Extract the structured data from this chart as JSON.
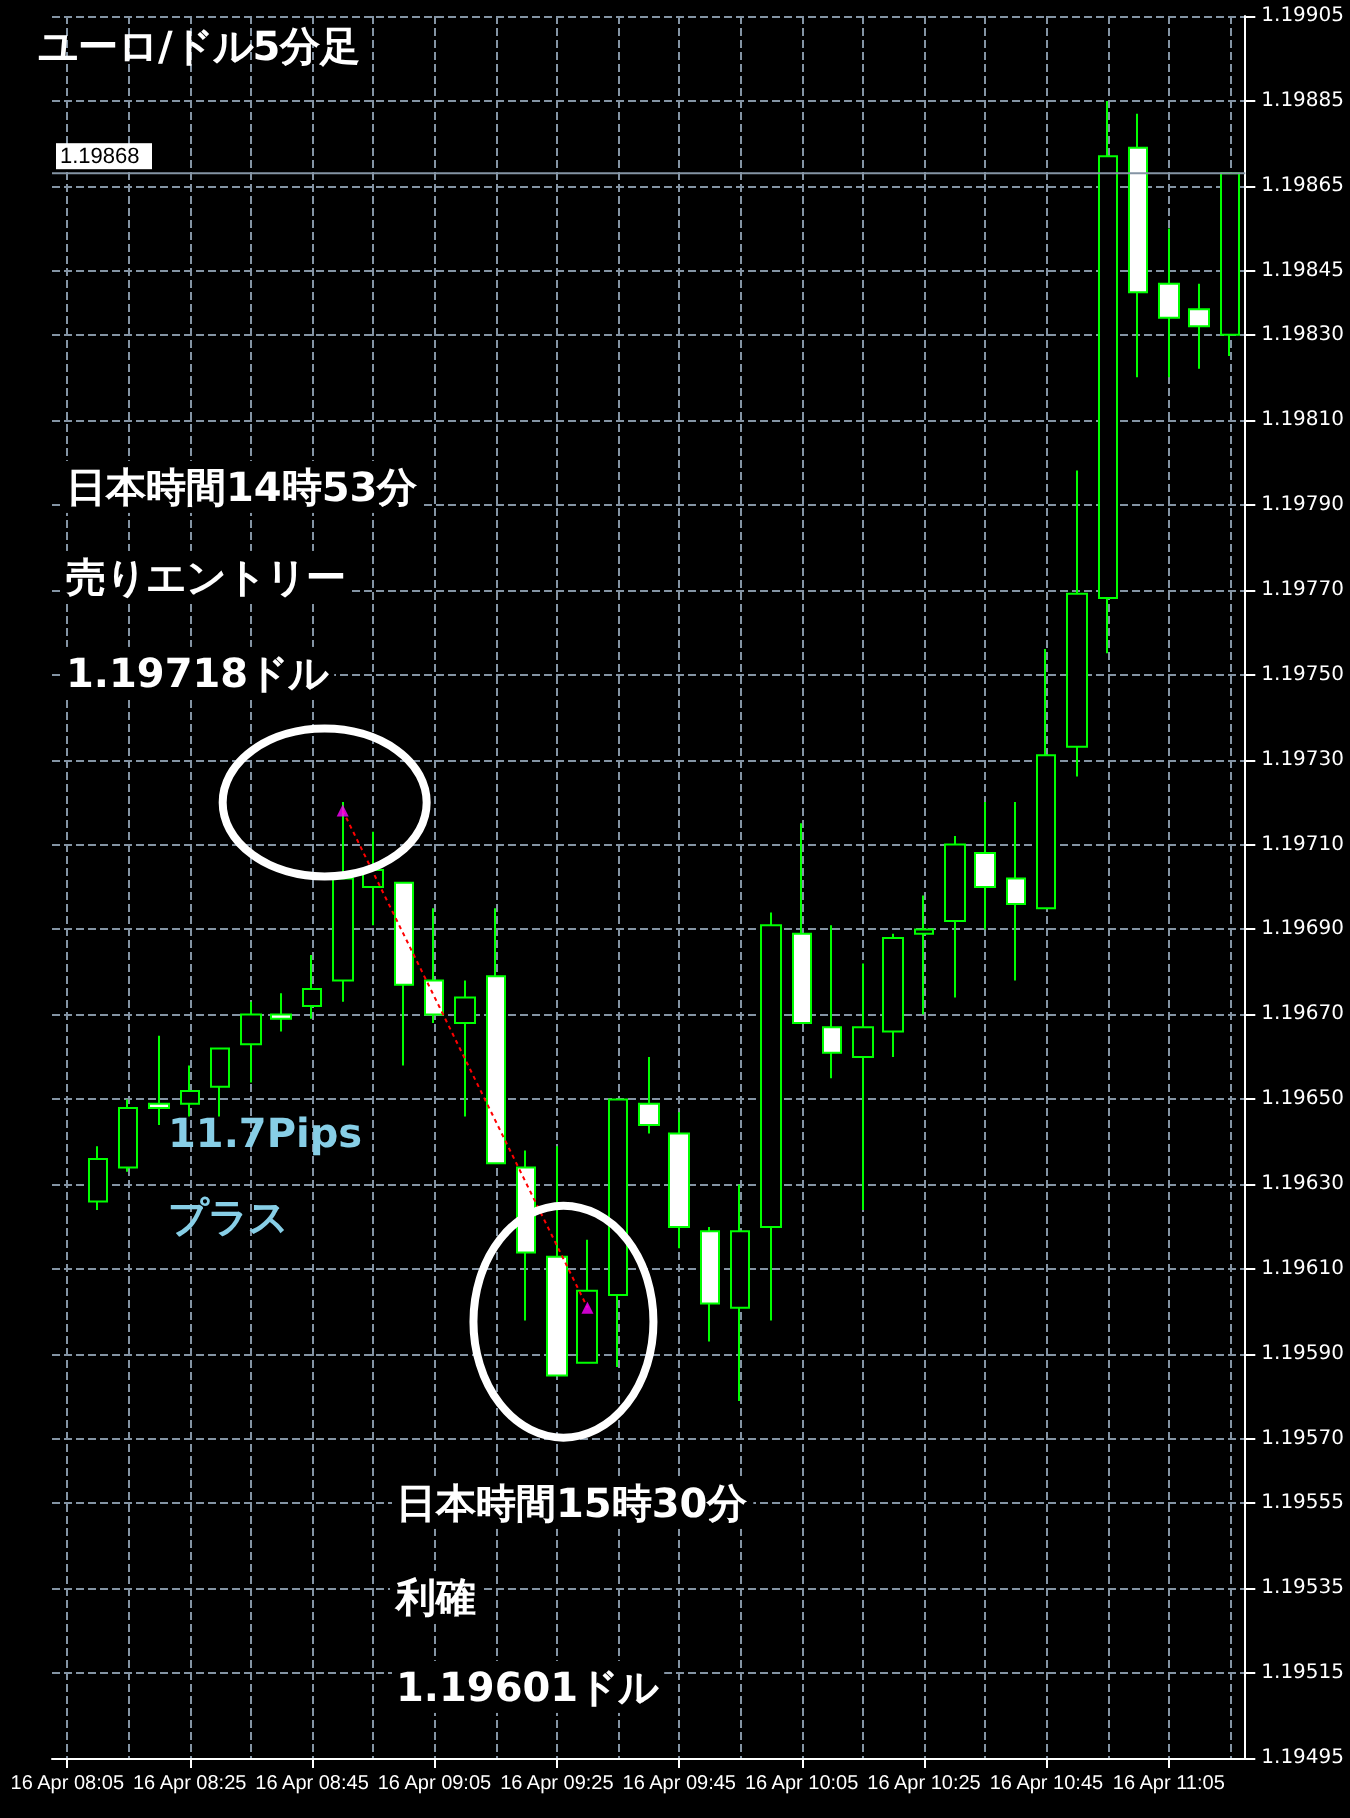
{
  "chart_data": {
    "type": "candlestick",
    "title": "ユーロ/ドル5分足",
    "categories": [
      "16 Apr 08:05",
      null,
      null,
      null,
      "16 Apr 08:25",
      null,
      null,
      null,
      "16 Apr 08:45",
      null,
      null,
      null,
      "16 Apr 09:05",
      null,
      null,
      null,
      "16 Apr 09:25",
      null,
      null,
      null,
      "16 Apr 09:45",
      null,
      null,
      null,
      "16 Apr 10:05",
      null,
      null,
      null,
      "16 Apr 10:25",
      null,
      null,
      null,
      "16 Apr 10:45",
      null,
      null,
      null,
      "16 Apr 11:05",
      null,
      null
    ],
    "ohlc": [
      null,
      [
        1.19626,
        1.19639,
        1.19624,
        1.19636
      ],
      [
        1.19634,
        1.1965,
        1.19633,
        1.19648
      ],
      [
        1.19649,
        1.19665,
        1.19644,
        1.19648
      ],
      [
        1.19649,
        1.19658,
        1.19646,
        1.19652
      ],
      [
        1.19653,
        1.19662,
        1.19646,
        1.19662
      ],
      [
        1.19663,
        1.19673,
        1.19654,
        1.1967
      ],
      [
        1.1967,
        1.19675,
        1.19666,
        1.19669
      ],
      [
        1.19672,
        1.19684,
        1.19669,
        1.19676
      ],
      [
        1.19678,
        1.1972,
        1.19673,
        1.19702
      ],
      [
        1.197,
        1.19713,
        1.19691,
        1.19704
      ],
      [
        1.19701,
        1.19701,
        1.19658,
        1.19677
      ],
      [
        1.19678,
        1.19695,
        1.19668,
        1.1967
      ],
      [
        1.19668,
        1.19678,
        1.19646,
        1.19674
      ],
      [
        1.19679,
        1.19695,
        1.19635,
        1.19635
      ],
      [
        1.19634,
        1.19638,
        1.19598,
        1.19614
      ],
      [
        1.19613,
        1.19639,
        1.19585,
        1.19585
      ],
      [
        1.19588,
        1.19617,
        1.19588,
        1.19605
      ],
      [
        1.19604,
        1.1965,
        1.19587,
        1.1965
      ],
      [
        1.19649,
        1.1966,
        1.19642,
        1.19644
      ],
      [
        1.19642,
        1.19647,
        1.19615,
        1.1962
      ],
      [
        1.19619,
        1.1962,
        1.19593,
        1.19602
      ],
      [
        1.19601,
        1.1963,
        1.19579,
        1.19619
      ],
      [
        1.1962,
        1.19694,
        1.19598,
        1.19691
      ],
      [
        1.19689,
        1.19715,
        1.19668,
        1.19668
      ],
      [
        1.19667,
        1.19691,
        1.19655,
        1.19661
      ],
      [
        1.1966,
        1.19682,
        1.19624,
        1.19667
      ],
      [
        1.19666,
        1.19689,
        1.1966,
        1.19688
      ],
      [
        1.19689,
        1.19698,
        1.1967,
        1.1969
      ],
      [
        1.19692,
        1.19712,
        1.19674,
        1.1971
      ],
      [
        1.19708,
        1.1972,
        1.1969,
        1.197
      ],
      [
        1.19702,
        1.1972,
        1.19678,
        1.19696
      ],
      [
        1.19695,
        1.19756,
        1.19695,
        1.19731
      ],
      [
        1.19733,
        1.19798,
        1.19726,
        1.19769
      ],
      [
        1.19768,
        1.19885,
        1.19755,
        1.19872
      ],
      [
        1.19874,
        1.19882,
        1.1982,
        1.1984
      ],
      [
        1.19842,
        1.19855,
        1.1982,
        1.19834
      ],
      [
        1.19836,
        1.19842,
        1.19822,
        1.19832
      ],
      [
        1.1983,
        1.19868,
        1.19825,
        1.19868
      ]
    ],
    "color": "#00ff00",
    "series": [
      {
        "type": "line",
        "color": "#ff0000",
        "line_style": "dotted",
        "marker": "none",
        "values": [
          null,
          null,
          null,
          null,
          null,
          null,
          null,
          null,
          null,
          1.19718,
          null,
          null,
          null,
          null,
          null,
          null,
          null,
          1.19601,
          null,
          null,
          null,
          null,
          null,
          null,
          null,
          null,
          null,
          null,
          null,
          null,
          null,
          null,
          null,
          null,
          null,
          null,
          null,
          null,
          null
        ]
      },
      {
        "type": "scatter",
        "color": "#ff00ff",
        "marker": "triangle",
        "values": [
          null,
          null,
          null,
          null,
          null,
          null,
          null,
          null,
          null,
          1.19718,
          null,
          null,
          null,
          null,
          null,
          null,
          null,
          1.19601,
          null,
          null,
          null,
          null,
          null,
          null,
          null,
          null,
          null,
          null,
          null,
          null,
          null,
          null,
          null,
          null,
          null,
          null,
          null,
          null,
          null
        ]
      }
    ],
    "ylim": [
      1.19495,
      1.19905
    ],
    "yticks": [
      {
        "value": 1.19905,
        "label": "1.19905"
      },
      {
        "value": 1.19885,
        "label": "1.19885"
      },
      {
        "value": 1.19865,
        "label": "1.19865"
      },
      {
        "value": 1.19845,
        "label": "1.19845"
      },
      {
        "value": 1.1983,
        "label": "1.19830"
      },
      {
        "value": 1.1981,
        "label": "1.19810"
      },
      {
        "value": 1.1979,
        "label": "1.19790"
      },
      {
        "value": 1.1977,
        "label": "1.19770"
      },
      {
        "value": 1.1975,
        "label": "1.19750"
      },
      {
        "value": 1.1973,
        "label": "1.19730"
      },
      {
        "value": 1.1971,
        "label": "1.19710"
      },
      {
        "value": 1.1969,
        "label": "1.19690"
      },
      {
        "value": 1.1967,
        "label": "1.19670"
      },
      {
        "value": 1.1965,
        "label": "1.19650"
      },
      {
        "value": 1.1963,
        "label": "1.19630"
      },
      {
        "value": 1.1961,
        "label": "1.19610"
      },
      {
        "value": 1.1959,
        "label": "1.19590"
      },
      {
        "value": 1.1957,
        "label": "1.19570"
      },
      {
        "value": 1.19555,
        "label": "1.19555"
      },
      {
        "value": 1.19535,
        "label": "1.19535"
      },
      {
        "value": 1.19515,
        "label": "1.19515"
      },
      {
        "value": 1.19495,
        "label": "1.19495"
      }
    ],
    "ref_lines": [
      {
        "axis": "y",
        "value": 1.19868,
        "label": "1.19868",
        "color": "#8494a4"
      }
    ],
    "annotations": [
      "日本時間14時53分",
      "売りエントリー",
      "1.19718ドル",
      "11.7Pips",
      "プラス",
      "日本時間15時30分",
      "利確",
      "1.19601ドル"
    ],
    "grid": true
  }
}
